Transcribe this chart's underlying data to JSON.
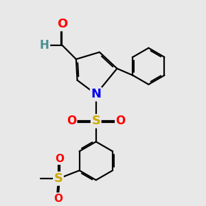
{
  "bg_color": "#e8e8e8",
  "atom_colors": {
    "C": "#000000",
    "N": "#0000ee",
    "O": "#ff0000",
    "S": "#ccaa00",
    "H": "#4a9090"
  },
  "bond_color": "#000000",
  "bond_width": 1.6,
  "font_size_atoms": 13,
  "fig_w": 3.0,
  "fig_h": 3.0,
  "dpi": 100
}
